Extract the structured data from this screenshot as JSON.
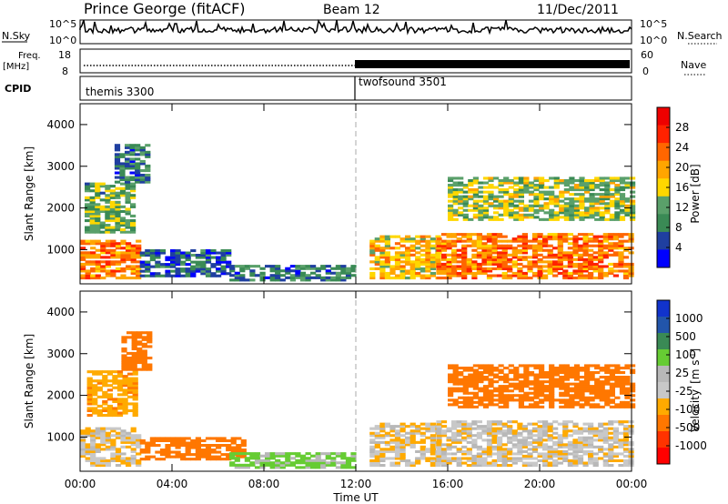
{
  "header": {
    "radar": "Prince George (fitACF)",
    "beam": "Beam 12",
    "date": "11/Dec/2011"
  },
  "panels": {
    "nsky": {
      "label": "N.Sky",
      "ticks": [
        "10^5",
        "10^0"
      ]
    },
    "nsearch": {
      "label": "N.Search",
      "ticks": [
        "10^5",
        "10^0"
      ]
    },
    "freq": {
      "label_line1": "Freq.",
      "label_line2": "[MHz]",
      "ticks": [
        "18",
        "8"
      ]
    },
    "nave": {
      "label": "Nave",
      "ticks": [
        "60",
        "0"
      ]
    },
    "cpid": {
      "label": "CPID",
      "modes": [
        "themis 3300",
        "twofsound 3501"
      ]
    }
  },
  "colors": {
    "power_scale": [
      "#0000ff",
      "#1f3fa0",
      "#3a8a55",
      "#5aa06a",
      "#ffd700",
      "#ffa500",
      "#ff6600",
      "#ff2200",
      "#ee0000"
    ],
    "velocity_scale": [
      "#1133cc",
      "#2255aa",
      "#3a8a55",
      "#66cc33",
      "#b8b8b8",
      "#c8c8c8",
      "#ffaa00",
      "#ff7700",
      "#ff3300",
      "#ff0000"
    ]
  },
  "chart_data": [
    {
      "type": "heatmap",
      "name": "power",
      "xlabel": "Time UT",
      "ylabel": "Slant Range [km]",
      "xlim": [
        "00:00",
        "24:00"
      ],
      "ylim": [
        180,
        4500
      ],
      "x_ticks": [
        "00:00",
        "04:00",
        "08:00",
        "12:00",
        "16:00",
        "20:00",
        "00:00"
      ],
      "y_ticks": [
        1000,
        2000,
        3000,
        4000
      ],
      "colorbar": {
        "label": "Power [dB]",
        "ticks": [
          4,
          8,
          12,
          16,
          20,
          24,
          28
        ],
        "range": [
          0,
          32
        ]
      },
      "regions": [
        {
          "hours": [
            0.0,
            2.6
          ],
          "range_km": [
            300,
            1200
          ],
          "level": 22
        },
        {
          "hours": [
            0.2,
            2.3
          ],
          "range_km": [
            1400,
            2600
          ],
          "level": 12
        },
        {
          "hours": [
            1.5,
            3.0
          ],
          "range_km": [
            2600,
            3500
          ],
          "level": 8
        },
        {
          "hours": [
            2.6,
            6.5
          ],
          "range_km": [
            350,
            1000
          ],
          "level": 6
        },
        {
          "hours": [
            6.5,
            12.0
          ],
          "range_km": [
            250,
            600
          ],
          "level": 8
        },
        {
          "hours": [
            12.6,
            15.5
          ],
          "range_km": [
            300,
            1300
          ],
          "level": 18
        },
        {
          "hours": [
            15.5,
            24.0
          ],
          "range_km": [
            300,
            1400
          ],
          "level": 22
        },
        {
          "hours": [
            16.0,
            24.0
          ],
          "range_km": [
            1700,
            2700
          ],
          "level": 14
        }
      ]
    },
    {
      "type": "heatmap",
      "name": "velocity",
      "xlabel": "Time UT",
      "ylabel": "Slant Range [km]",
      "xlim": [
        "00:00",
        "24:00"
      ],
      "ylim": [
        180,
        4500
      ],
      "x_ticks": [
        "00:00",
        "04:00",
        "08:00",
        "12:00",
        "16:00",
        "20:00",
        "00:00"
      ],
      "y_ticks": [
        1000,
        2000,
        3000,
        4000
      ],
      "colorbar": {
        "label_main": "Velocity",
        "label_unit": "[m s",
        "label_exp": "-1",
        "label_close": "]",
        "ticks": [
          "1000",
          "500",
          "100",
          "25",
          "-25",
          "-100",
          "-500",
          "-1000"
        ]
      },
      "regions": [
        {
          "hours": [
            0.0,
            2.6
          ],
          "range_km": [
            300,
            1200
          ],
          "vel": -20
        },
        {
          "hours": [
            0.3,
            2.4
          ],
          "range_km": [
            1500,
            2600
          ],
          "vel": -80
        },
        {
          "hours": [
            1.8,
            3.0
          ],
          "range_km": [
            2600,
            3500
          ],
          "vel": -300
        },
        {
          "hours": [
            2.6,
            7.0
          ],
          "range_km": [
            450,
            1000
          ],
          "vel": -150
        },
        {
          "hours": [
            6.5,
            12.0
          ],
          "range_km": [
            250,
            600
          ],
          "vel": 40
        },
        {
          "hours": [
            12.6,
            15.5
          ],
          "range_km": [
            300,
            1300
          ],
          "vel": -20
        },
        {
          "hours": [
            15.5,
            24.0
          ],
          "range_km": [
            300,
            1400
          ],
          "vel": -10
        },
        {
          "hours": [
            16.0,
            24.0
          ],
          "range_km": [
            1700,
            2700
          ],
          "vel": -250
        }
      ]
    }
  ]
}
